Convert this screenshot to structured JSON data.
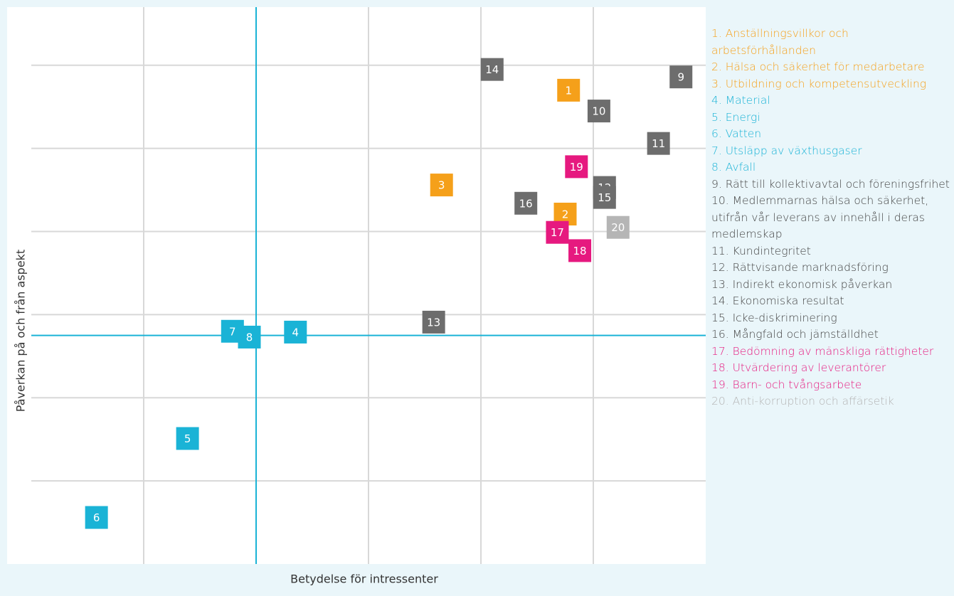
{
  "chart_data": {
    "type": "scatter",
    "xlabel": "Betydelse för intressenter",
    "ylabel": "Påverkan på och från aspekt",
    "xlim": [
      0,
      6
    ],
    "ylim": [
      0,
      6.7
    ],
    "xticks": [
      1,
      2,
      3,
      4,
      5
    ],
    "yticks": [
      1,
      2,
      3,
      4,
      5,
      6
    ],
    "grid": true,
    "reference_lines": {
      "x": 2,
      "y": 2.75,
      "color": "#1ab3d6"
    },
    "points": [
      {
        "label": "1",
        "x": 4.78,
        "y": 5.7,
        "color": "#f5a01a"
      },
      {
        "label": "2",
        "x": 4.75,
        "y": 4.21,
        "color": "#f5a01a"
      },
      {
        "label": "3",
        "x": 3.65,
        "y": 4.56,
        "color": "#f5a01a"
      },
      {
        "label": "4",
        "x": 2.35,
        "y": 2.79,
        "color": "#1ab3d6"
      },
      {
        "label": "5",
        "x": 1.39,
        "y": 1.51,
        "color": "#1ab3d6"
      },
      {
        "label": "6",
        "x": 0.58,
        "y": 0.56,
        "color": "#1ab3d6"
      },
      {
        "label": "7",
        "x": 1.79,
        "y": 2.8,
        "color": "#1ab3d6"
      },
      {
        "label": "8",
        "x": 1.94,
        "y": 2.73,
        "color": "#1ab3d6"
      },
      {
        "label": "9",
        "x": 5.78,
        "y": 5.86,
        "color": "#6d6d6d"
      },
      {
        "label": "10",
        "x": 5.05,
        "y": 5.45,
        "color": "#6d6d6d"
      },
      {
        "label": "11",
        "x": 5.58,
        "y": 5.06,
        "color": "#6d6d6d"
      },
      {
        "label": "12",
        "x": 5.1,
        "y": 4.53,
        "color": "#6d6d6d"
      },
      {
        "label": "13",
        "x": 3.58,
        "y": 2.91,
        "color": "#6d6d6d"
      },
      {
        "label": "14",
        "x": 4.1,
        "y": 5.95,
        "color": "#6d6d6d"
      },
      {
        "label": "15",
        "x": 5.1,
        "y": 4.41,
        "color": "#6d6d6d"
      },
      {
        "label": "16",
        "x": 4.4,
        "y": 4.34,
        "color": "#6d6d6d"
      },
      {
        "label": "17",
        "x": 4.68,
        "y": 3.99,
        "color": "#e6197f"
      },
      {
        "label": "18",
        "x": 4.88,
        "y": 3.77,
        "color": "#e6197f"
      },
      {
        "label": "19",
        "x": 4.85,
        "y": 4.78,
        "color": "#e6197f"
      },
      {
        "label": "20",
        "x": 5.22,
        "y": 4.05,
        "color": "#b5b5b5"
      }
    ],
    "legend": [
      {
        "text": "1. Anställningsvillkor och arbetsförhållanden",
        "color": "#f5a01a"
      },
      {
        "text": "2. Hälsa och säkerhet för medarbetare",
        "color": "#f5a01a"
      },
      {
        "text": "3. Utbildning och kompetensutveckling",
        "color": "#f5a01a"
      },
      {
        "text": "4. Material",
        "color": "#1ab3d6"
      },
      {
        "text": "5. Energi",
        "color": "#1ab3d6"
      },
      {
        "text": "6. Vatten",
        "color": "#1ab3d6"
      },
      {
        "text": "7. Utsläpp av växthusgaser",
        "color": "#1ab3d6"
      },
      {
        "text": "8. Avfall",
        "color": "#1ab3d6"
      },
      {
        "text": "9. Rätt till kollektivavtal och föreningsfrihet",
        "color": "#444444"
      },
      {
        "text": "10. Medlemmarnas hälsa och säkerhet, utifrån vår leverans av innehåll i deras medlemskap",
        "color": "#444444"
      },
      {
        "text": "11. Kundintegritet",
        "color": "#444444"
      },
      {
        "text": "12. Rättvisande marknadsföring",
        "color": "#444444"
      },
      {
        "text": "13. Indirekt ekonomisk påverkan",
        "color": "#444444"
      },
      {
        "text": "14. Ekonomiska resultat",
        "color": "#444444"
      },
      {
        "text": "15. Icke-diskriminering",
        "color": "#444444"
      },
      {
        "text": "16. Mångfald och jämställdhet",
        "color": "#444444"
      },
      {
        "text": "17. Bedömning av mänskliga rättigheter",
        "color": "#e6197f"
      },
      {
        "text": "18. Utvärdering av leverantörer",
        "color": "#e6197f"
      },
      {
        "text": "19. Barn- och tvångsarbete",
        "color": "#e6197f"
      },
      {
        "text": "20. Anti-korruption och affärsetik",
        "color": "#b5b5b5"
      }
    ]
  }
}
